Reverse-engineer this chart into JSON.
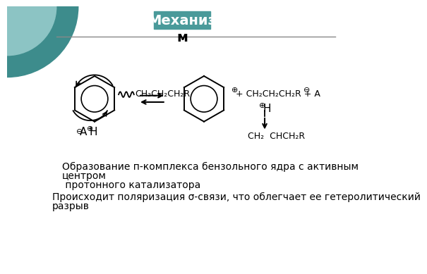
{
  "title_box_text": "Механиз",
  "title_box_sub": "м",
  "title_box_color": "#4a9a9a",
  "title_text_color": "#ffffff",
  "subtitle_text_color": "#000000",
  "bg_color": "#ffffff",
  "circle_color1": "#3d8c8c",
  "circle_color2": "#8cc4c4",
  "separator_color": "#888888",
  "label1_line1": "Образование п-комплекса бензольного ядра с активным",
  "label1_line2": "центром",
  "label1_line3": " протонного катализатора",
  "label2_line1": "Происходит поляризация σ-связи, что облегчает ее гетеролитический",
  "label2_line2": "разрыв",
  "chem_left_sub": "CH₂CH₂CH₂R",
  "chem_right_chain": "+ CH₂CH₂CH₂R + A",
  "chem_right_bot": "CH₂  CHCH₂R",
  "label_H_plus": "⊕H",
  "sup_plus": "⊕",
  "sup_minus": "⊖"
}
